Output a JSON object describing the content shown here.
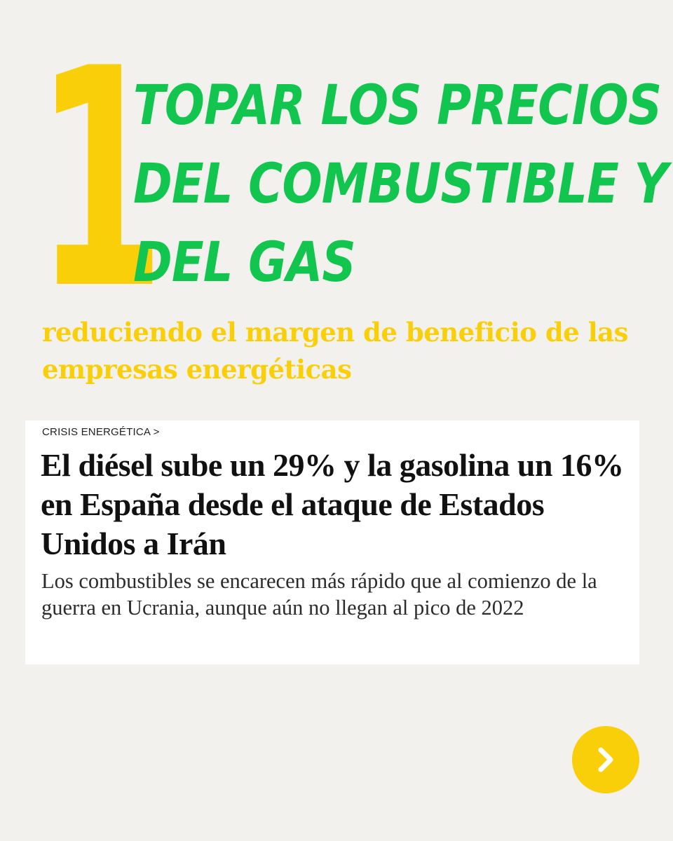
{
  "hero": {
    "number": "1",
    "headline_lines": [
      "TOPAR LOS PRECIOS",
      "DEL COMBUSTIBLE Y",
      "DEL GAS"
    ],
    "subheadline": "reduciendo el margen de beneficio de las empresas energéticas"
  },
  "article": {
    "category": "CRISIS ENERGÉTICA >",
    "title": "El diésel sube un 29% y la gasolina un 16% en España desde el ataque de Estados Unidos a Irán",
    "subtitle": "Los combustibles se encarecen más rápido que al comienzo de la guerra en Ucrania, aunque aún no llegan al pico de 2022"
  },
  "navigation": {
    "next_icon": "chevron-right-icon"
  },
  "colors": {
    "background": "#f3f1ed",
    "accent_yellow": "#f8cf09",
    "accent_green": "#12c54f",
    "card_background": "#ffffff"
  }
}
